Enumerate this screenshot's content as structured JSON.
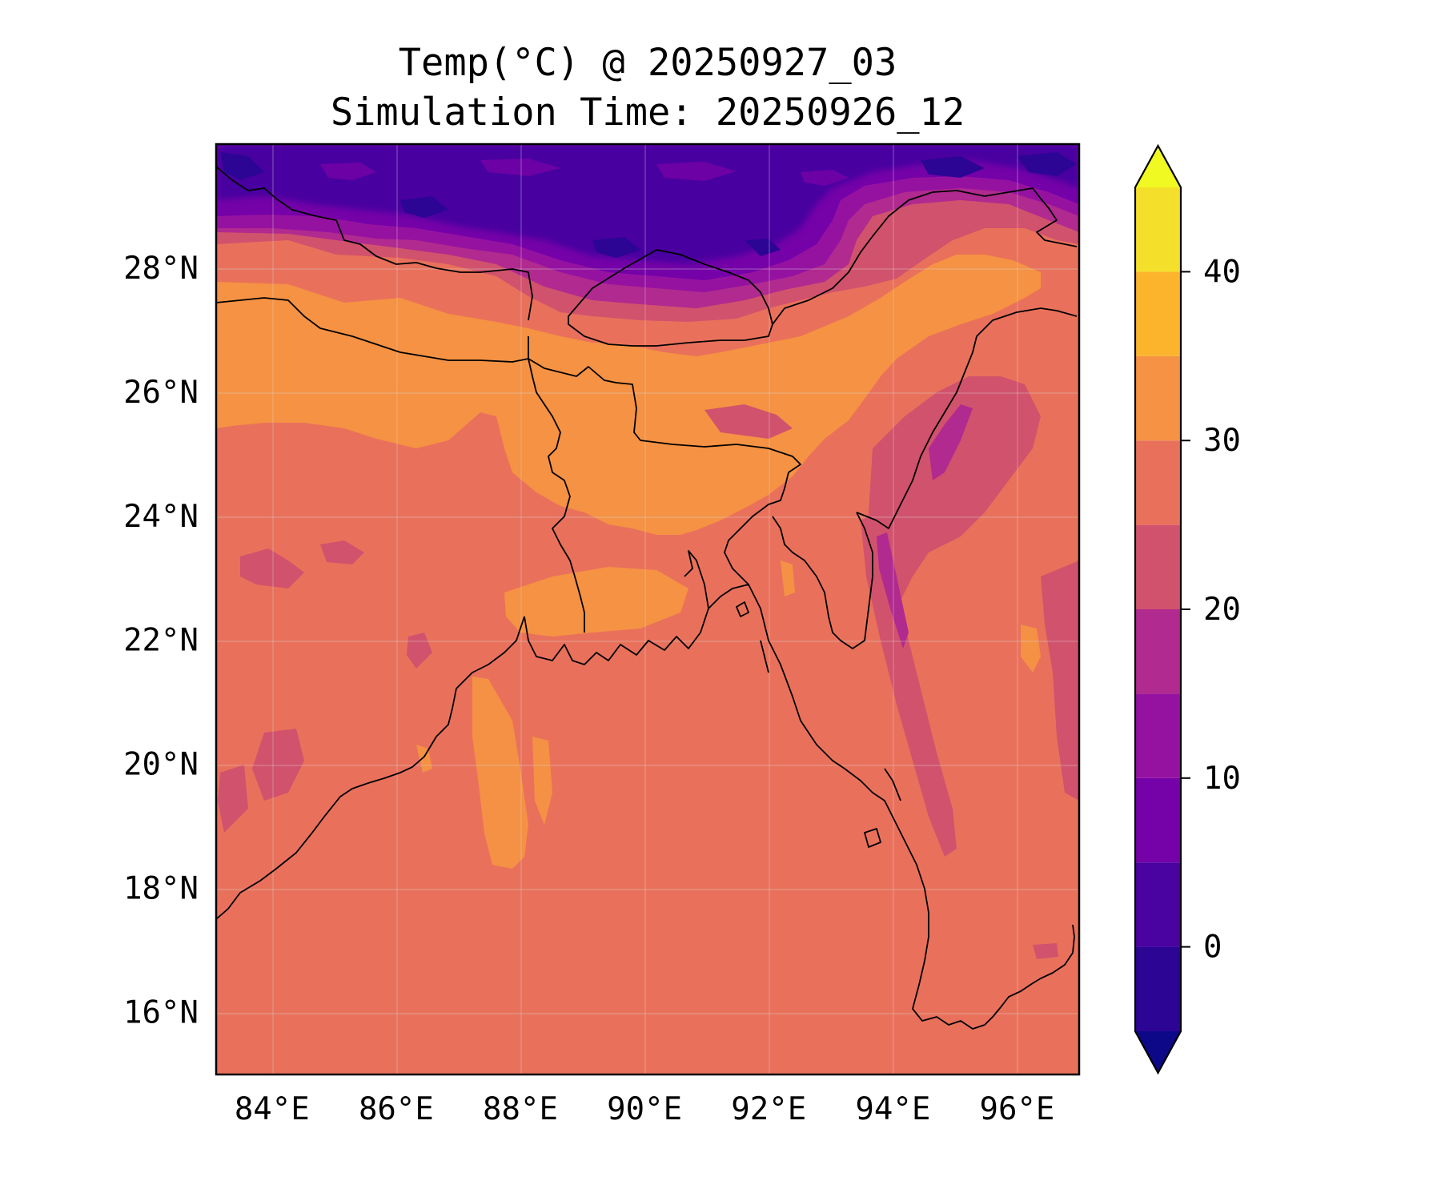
{
  "title": "Temp(°C) @ 20250927_03",
  "subtitle": "Simulation Time: 20250926_12",
  "map": {
    "lon_range": [
      83.1,
      97.0
    ],
    "lat_range": [
      15.0,
      30.0
    ],
    "lon_ticks": [
      {
        "value": 84,
        "label": "84°E"
      },
      {
        "value": 86,
        "label": "86°E"
      },
      {
        "value": 88,
        "label": "88°E"
      },
      {
        "value": 90,
        "label": "90°E"
      },
      {
        "value": 92,
        "label": "92°E"
      },
      {
        "value": 94,
        "label": "94°E"
      },
      {
        "value": 96,
        "label": "96°E"
      }
    ],
    "lat_ticks": [
      {
        "value": 16,
        "label": "16°N"
      },
      {
        "value": 18,
        "label": "18°N"
      },
      {
        "value": 20,
        "label": "20°N"
      },
      {
        "value": 22,
        "label": "22°N"
      },
      {
        "value": 24,
        "label": "24°N"
      },
      {
        "value": 26,
        "label": "26°N"
      },
      {
        "value": 28,
        "label": "28°N"
      }
    ],
    "gridlines": true,
    "colormap": "plasma"
  },
  "colorbar": {
    "min": -5,
    "max": 45,
    "extend": "both",
    "ticks": [
      {
        "value": 0,
        "label": "0"
      },
      {
        "value": 10,
        "label": "10"
      },
      {
        "value": 20,
        "label": "20"
      },
      {
        "value": 30,
        "label": "30"
      },
      {
        "value": 40,
        "label": "40"
      }
    ],
    "levels": [
      {
        "from": -5,
        "to": 0,
        "color": "#2c0594"
      },
      {
        "from": 0,
        "to": 5,
        "color": "#4a02a0"
      },
      {
        "from": 5,
        "to": 10,
        "color": "#7501a8"
      },
      {
        "from": 10,
        "to": 15,
        "color": "#9512a1"
      },
      {
        "from": 15,
        "to": 20,
        "color": "#b02a8f"
      },
      {
        "from": 20,
        "to": 25,
        "color": "#d1526d"
      },
      {
        "from": 25,
        "to": 30,
        "color": "#e9715b"
      },
      {
        "from": 30,
        "to": 35,
        "color": "#f59243"
      },
      {
        "from": 35,
        "to": 40,
        "color": "#fcb42d"
      },
      {
        "from": 40,
        "to": 45,
        "color": "#f4e02b"
      }
    ],
    "under_color": "#0d0887",
    "over_color": "#f0f921"
  }
}
